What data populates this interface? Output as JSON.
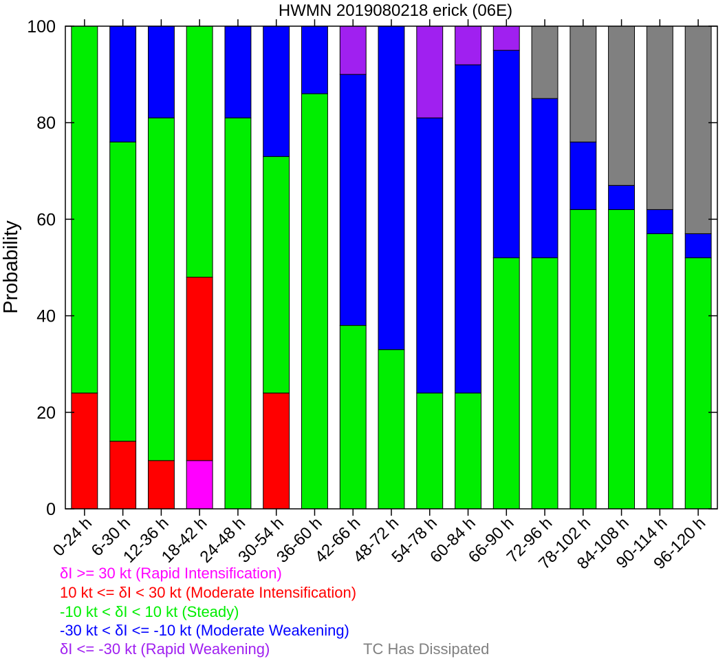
{
  "chart_data": {
    "type": "bar",
    "stacked": true,
    "title": "HWMN 2019080218 erick (06E)",
    "xlabel": "",
    "ylabel": "Probability",
    "ylim": [
      0,
      100
    ],
    "yticks": [
      0,
      20,
      40,
      60,
      80,
      100
    ],
    "grid": false,
    "legend_position": "bottom",
    "categories": [
      "0-24 h",
      "6-30 h",
      "12-36 h",
      "18-42 h",
      "24-48 h",
      "30-54 h",
      "36-60 h",
      "42-66 h",
      "48-72 h",
      "54-78 h",
      "60-84 h",
      "66-90 h",
      "72-96 h",
      "78-102 h",
      "84-108 h",
      "90-114 h",
      "96-120 h"
    ],
    "series": [
      {
        "name": "δI >= 30 kt (Rapid Intensification)",
        "color": "#ff00ff",
        "values": [
          0,
          0,
          0,
          10,
          0,
          0,
          0,
          0,
          0,
          0,
          0,
          0,
          0,
          0,
          0,
          0,
          0
        ]
      },
      {
        "name": "10 kt <= δI < 30 kt (Moderate Intensification)",
        "color": "#ff0000",
        "values": [
          24,
          14,
          10,
          38,
          0,
          24,
          0,
          0,
          0,
          0,
          0,
          0,
          0,
          0,
          0,
          0,
          0
        ]
      },
      {
        "name": "-10 kt < δI < 10 kt (Steady)",
        "color": "#00ee00",
        "values": [
          76,
          62,
          71,
          52,
          81,
          49,
          86,
          38,
          33,
          24,
          24,
          52,
          52,
          62,
          62,
          57,
          52
        ]
      },
      {
        "name": "-30 kt < δI <= -10 kt (Moderate Weakening)",
        "color": "#0000ff",
        "values": [
          0,
          24,
          19,
          0,
          19,
          27,
          14,
          52,
          67,
          57,
          68,
          43,
          33,
          14,
          5,
          5,
          5
        ]
      },
      {
        "name": "δI <= -30 kt (Rapid Weakening)",
        "color": "#a020f0",
        "values": [
          0,
          0,
          0,
          0,
          0,
          0,
          0,
          10,
          0,
          19,
          8,
          5,
          0,
          0,
          0,
          0,
          0
        ]
      },
      {
        "name": "TC Has Dissipated",
        "color": "#808080",
        "values": [
          0,
          0,
          0,
          0,
          0,
          0,
          0,
          0,
          0,
          0,
          0,
          0,
          15,
          24,
          33,
          38,
          43
        ]
      }
    ]
  },
  "legend_lines": [
    {
      "text": "δI >= 30 kt (Rapid Intensification)",
      "color": "#ff00ff"
    },
    {
      "text": "10 kt <= δI < 30 kt (Moderate Intensification)",
      "color": "#ff0000"
    },
    {
      "text": "-10 kt < δI < 10 kt (Steady)",
      "color": "#00ee00"
    },
    {
      "text": "-30 kt < δI <= -10 kt (Moderate Weakening)",
      "color": "#0000ff"
    },
    {
      "text": "δI <= -30 kt (Rapid Weakening)",
      "color": "#a020f0"
    }
  ],
  "legend_dissipated": {
    "text": "TC Has Dissipated",
    "color": "#808080"
  }
}
